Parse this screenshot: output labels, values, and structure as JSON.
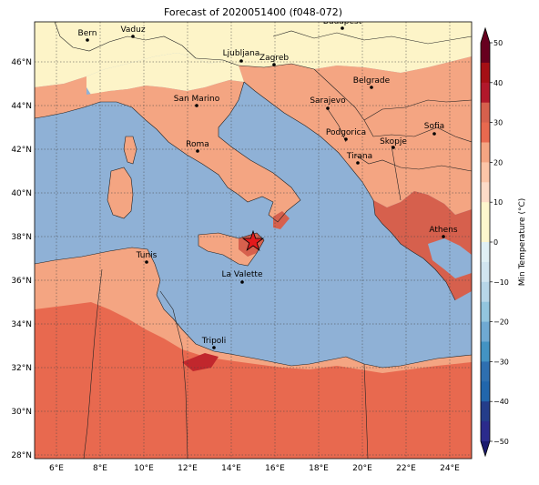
{
  "title": "Forecast of 2020051400 (f048-072)",
  "colorbar": {
    "label": "Min Temperature (°C)",
    "ticks": [
      "50",
      "40",
      "30",
      "20",
      "10",
      "0",
      "−10",
      "−20",
      "−30",
      "−40",
      "−50"
    ],
    "colors": [
      "#67001f",
      "#b2182b",
      "#d6604d",
      "#f4a582",
      "#fddbc7",
      "#fdf6cd",
      "#d1e5f0",
      "#92c5de",
      "#4393c3",
      "#2166ac",
      "#053061",
      "#2b2b8c",
      "#1a1a6e"
    ]
  },
  "x_ticks": [
    "6°E",
    "8°E",
    "10°E",
    "12°E",
    "14°E",
    "16°E",
    "18°E",
    "20°E",
    "22°E",
    "24°E"
  ],
  "y_ticks": [
    "46°N",
    "44°N",
    "42°N",
    "40°N",
    "38°N",
    "36°N",
    "34°N",
    "32°N",
    "30°N",
    "28°N"
  ],
  "cities": [
    {
      "name": "Bern"
    },
    {
      "name": "Vaduz"
    },
    {
      "name": "Budapest"
    },
    {
      "name": "Ljubljana"
    },
    {
      "name": "Zagreb"
    },
    {
      "name": "San Marino"
    },
    {
      "name": "Sarajevo"
    },
    {
      "name": "Belgrade"
    },
    {
      "name": "Roma"
    },
    {
      "name": "Podgorica"
    },
    {
      "name": "Sofia"
    },
    {
      "name": "Skopje"
    },
    {
      "name": "Tirana"
    },
    {
      "name": "Athens"
    },
    {
      "name": "Tunis"
    },
    {
      "name": "La Valette"
    },
    {
      "name": "Tripoli"
    }
  ],
  "marker": {
    "symbol": "star",
    "color": "#e31a1c"
  }
}
